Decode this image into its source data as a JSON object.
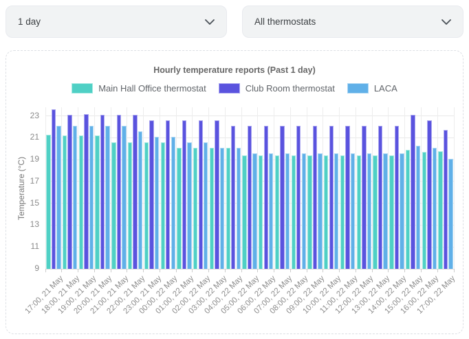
{
  "controls": {
    "period_select": {
      "value": "1 day"
    },
    "thermostat_select": {
      "value": "All thermostats"
    }
  },
  "chart_data": {
    "type": "bar",
    "title": "Hourly temperature reports (Past 1 day)",
    "xlabel": "",
    "ylabel": "Temperature (°C)",
    "ylim": [
      9,
      23.8
    ],
    "yticks": [
      9,
      11,
      13,
      15,
      17,
      19,
      21,
      23
    ],
    "grid": true,
    "legend_position": "top",
    "categories": [
      "17:00, 21 May",
      "18:00, 21 May",
      "19:00, 21 May",
      "20:00, 21 May",
      "21:00, 21 May",
      "22:00, 21 May",
      "23:00, 21 May",
      "00:00, 22 May",
      "01:00, 22 May",
      "02:00, 22 May",
      "03:00, 22 May",
      "04:00, 22 May",
      "05:00, 22 May",
      "06:00, 22 May",
      "07:00, 22 May",
      "08:00, 22 May",
      "09:00, 22 May",
      "10:00, 22 May",
      "11:00, 22 May",
      "12:00, 22 May",
      "13:00, 22 May",
      "14:00, 22 May",
      "15:00, 22 May",
      "16:00, 22 May",
      "17:00, 22 May"
    ],
    "series": [
      {
        "name": "Main Hall Office thermostat",
        "color": "#4fd0c5",
        "border_color": "#a5e9e2",
        "values": [
          21.3,
          21.2,
          21.2,
          21.2,
          20.6,
          20.6,
          20.6,
          20.6,
          20.1,
          20.1,
          20.1,
          20.1,
          19.4,
          19.4,
          19.4,
          19.4,
          19.4,
          19.4,
          19.4,
          19.4,
          19.4,
          19.4,
          19.9,
          19.7,
          19.8
        ]
      },
      {
        "name": "Club Room thermostat",
        "color": "#5a53de",
        "border_color": "#aca8f0",
        "values": [
          23.6,
          23.1,
          23.2,
          23.1,
          23.1,
          23.1,
          22.6,
          22.6,
          22.6,
          22.6,
          22.6,
          22.1,
          22.1,
          22.1,
          22.1,
          22.1,
          22.1,
          22.1,
          22.1,
          22.1,
          22.1,
          22.1,
          23.1,
          22.6,
          21.7
        ]
      },
      {
        "name": "LACA",
        "color": "#60b0e8",
        "border_color": "#aed8f4",
        "values": [
          22.1,
          22.1,
          22.1,
          22.1,
          22.1,
          21.6,
          21.1,
          21.1,
          20.6,
          20.6,
          20.1,
          20.1,
          19.6,
          19.6,
          19.6,
          19.6,
          19.6,
          19.6,
          19.6,
          19.6,
          19.6,
          19.6,
          20.3,
          20.1,
          19.1
        ]
      }
    ]
  }
}
